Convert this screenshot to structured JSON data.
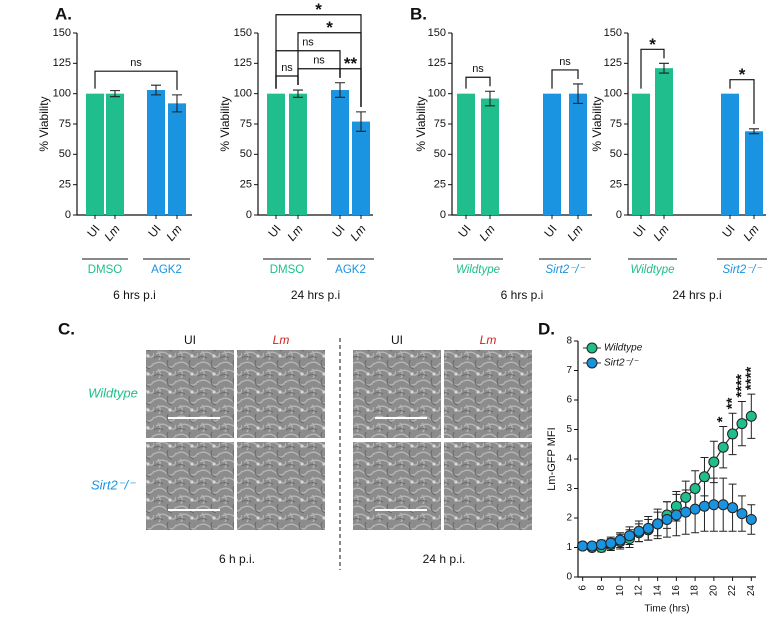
{
  "panel_labels": [
    "A.",
    "B.",
    "C.",
    "D."
  ],
  "chart_data": [
    {
      "type": "bar",
      "title": "6 hrs p.i",
      "ylabel": "% Viability",
      "categories": [
        "UI",
        "Lm",
        "UI",
        "Lm"
      ],
      "groups": [
        {
          "name": "DMSO",
          "color": "#1fbe8c"
        },
        {
          "name": "AGK2",
          "color": "#1a93e0"
        }
      ],
      "values": [
        100,
        100,
        103,
        92
      ],
      "errors": [
        null,
        2.5,
        4,
        7
      ],
      "ylim": [
        0,
        150
      ],
      "yticks": [
        0,
        25,
        50,
        75,
        100,
        125,
        150
      ],
      "brackets": [
        {
          "from": 0,
          "to": 3,
          "label": "ns"
        }
      ]
    },
    {
      "type": "bar",
      "title": "24 hrs p.i",
      "ylabel": "% Viability",
      "categories": [
        "UI",
        "Lm",
        "UI",
        "Lm"
      ],
      "groups": [
        {
          "name": "DMSO",
          "color": "#1fbe8c"
        },
        {
          "name": "AGK2",
          "color": "#1a93e0"
        }
      ],
      "values": [
        100,
        100,
        103,
        77
      ],
      "errors": [
        null,
        3,
        6,
        8
      ],
      "ylim": [
        0,
        150
      ],
      "yticks": [
        0,
        25,
        50,
        75,
        100,
        125,
        150
      ],
      "brackets": [
        {
          "from": 2,
          "to": 3,
          "label": "**"
        },
        {
          "from": 0,
          "to": 1,
          "label": "ns"
        },
        {
          "from": 1,
          "to": 2,
          "label": "ns"
        },
        {
          "from": 0,
          "to": 2,
          "label": "ns"
        },
        {
          "from": 1,
          "to": 3,
          "label": "*"
        },
        {
          "from": 0,
          "to": 3,
          "label": "*"
        }
      ]
    },
    {
      "type": "bar",
      "title": "6 hrs p.i",
      "ylabel": "% Viability",
      "categories": [
        "UI",
        "Lm",
        "UI",
        "Lm"
      ],
      "groups": [
        {
          "name": "Wildtype",
          "color": "#1fbe8c"
        },
        {
          "name": "Sirt2⁻/⁻",
          "color": "#1a93e0"
        }
      ],
      "values": [
        100,
        96,
        100,
        100
      ],
      "errors": [
        null,
        6,
        null,
        8
      ],
      "ylim": [
        0,
        150
      ],
      "yticks": [
        0,
        25,
        50,
        75,
        100,
        125,
        150
      ],
      "brackets": [
        {
          "from": 0,
          "to": 1,
          "label": "ns"
        },
        {
          "from": 2,
          "to": 3,
          "label": "ns"
        }
      ]
    },
    {
      "type": "bar",
      "title": "24 hrs p.i",
      "ylabel": "% Viability",
      "categories": [
        "UI",
        "Lm",
        "UI",
        "Lm"
      ],
      "groups": [
        {
          "name": "Wildtype",
          "color": "#1fbe8c"
        },
        {
          "name": "Sirt2⁻/⁻",
          "color": "#1a93e0"
        }
      ],
      "values": [
        100,
        121,
        100,
        69
      ],
      "errors": [
        null,
        4,
        null,
        2
      ],
      "ylim": [
        0,
        150
      ],
      "yticks": [
        0,
        25,
        50,
        75,
        100,
        125,
        150
      ],
      "brackets": [
        {
          "from": 0,
          "to": 1,
          "label": "*"
        },
        {
          "from": 2,
          "to": 3,
          "label": "*"
        }
      ]
    },
    {
      "type": "line",
      "xlabel": "Time (hrs)",
      "ylabel": "Lm-GFP MFI",
      "x": [
        6,
        7,
        8,
        9,
        10,
        11,
        12,
        13,
        14,
        15,
        16,
        17,
        18,
        19,
        20,
        21,
        22,
        23,
        24
      ],
      "series": [
        {
          "name": "Wildtype",
          "color": "#1fbe8c",
          "values": [
            1.05,
            1.0,
            1.0,
            1.1,
            1.2,
            1.3,
            1.5,
            1.6,
            1.8,
            2.1,
            2.4,
            2.7,
            3.0,
            3.4,
            3.9,
            4.4,
            4.85,
            5.2,
            5.45
          ],
          "errors": [
            0.1,
            0.1,
            0.15,
            0.2,
            0.25,
            0.3,
            0.3,
            0.35,
            0.4,
            0.45,
            0.5,
            0.55,
            0.6,
            0.65,
            0.7,
            0.7,
            0.7,
            0.75,
            0.75
          ]
        },
        {
          "name": "Sirt2⁻/⁻",
          "color": "#1a93e0",
          "values": [
            1.05,
            1.05,
            1.1,
            1.15,
            1.25,
            1.4,
            1.55,
            1.65,
            1.8,
            1.95,
            2.1,
            2.2,
            2.3,
            2.4,
            2.45,
            2.45,
            2.35,
            2.15,
            1.95
          ],
          "errors": [
            0.1,
            0.1,
            0.15,
            0.2,
            0.25,
            0.3,
            0.35,
            0.4,
            0.5,
            0.6,
            0.7,
            0.75,
            0.8,
            0.85,
            0.9,
            0.9,
            0.8,
            0.6,
            0.5
          ]
        }
      ],
      "xlim": [
        5.5,
        24.5
      ],
      "xticks": [
        6,
        8,
        10,
        12,
        14,
        16,
        18,
        20,
        22,
        24
      ],
      "ylim": [
        0,
        8
      ],
      "yticks": [
        0,
        1,
        2,
        3,
        4,
        5,
        6,
        7,
        8
      ],
      "legend": "upper left",
      "annotations": [
        {
          "x": 21,
          "label": "*"
        },
        {
          "x": 22,
          "label": "**"
        },
        {
          "x": 23,
          "label": "****"
        },
        {
          "x": 24,
          "label": "****"
        }
      ]
    }
  ],
  "image_panel": {
    "column_headers": [
      "UI",
      "Lm",
      "UI",
      "Lm"
    ],
    "row_labels": [
      "Wildtype",
      "Sirt2⁻/⁻"
    ],
    "time_labels": [
      "6 h p.i.",
      "24 h p.i."
    ]
  }
}
